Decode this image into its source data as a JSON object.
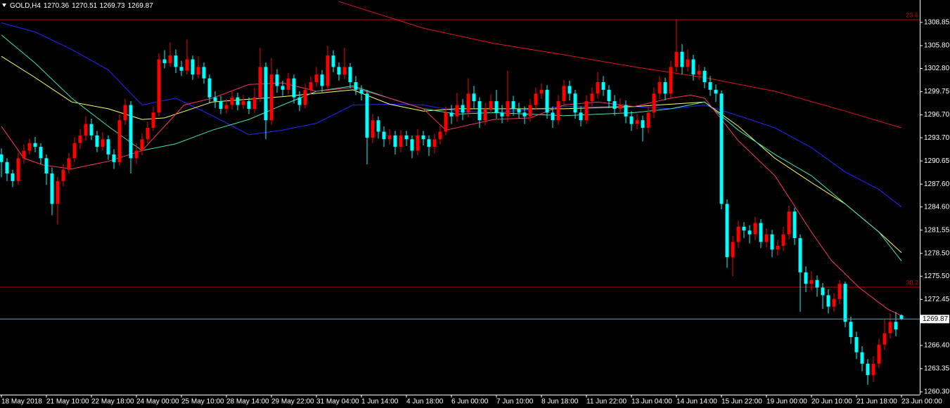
{
  "chart_data": {
    "type": "candlestick",
    "symbol": "GOLD,H4",
    "up_color": "#ff0000",
    "down_color": "#00ffff",
    "open": [
      1291.5,
      1290.5,
      1289,
      1288,
      1291,
      1292,
      1293,
      1292.5,
      1291,
      1289,
      1285,
      1288,
      1289.5,
      1291,
      1293,
      1294,
      1295.5,
      1294,
      1292.5,
      1293.5,
      1291.5,
      1290.5,
      1296,
      1298,
      1291,
      1292,
      1293.5,
      1295,
      1297,
      1304,
      1303.5,
      1304.5,
      1303,
      1302.5,
      1304,
      1302,
      1303,
      1301.5,
      1299,
      1298.5,
      1297.5,
      1298,
      1299,
      1298,
      1298.5,
      1297.5,
      1299,
      1303,
      1296,
      1302,
      1300.5,
      1300,
      1301.5,
      1299,
      1298,
      1300,
      1301,
      1302,
      1300.5,
      1304.5,
      1303,
      1302,
      1303,
      1301,
      1300,
      1299.5,
      1293.7,
      1296,
      1294.5,
      1293.5,
      1294,
      1292.5,
      1294,
      1293.5,
      1292,
      1294,
      1293.5,
      1292.5,
      1293.5,
      1294.5,
      1297,
      1296.5,
      1298,
      1297,
      1299.5,
      1298.5,
      1296,
      1297.5,
      1298.5,
      1297,
      1296.5,
      1298.5,
      1297.5,
      1297,
      1296.5,
      1298,
      1299.5,
      1300,
      1297,
      1296,
      1298.5,
      1300.5,
      1299.5,
      1297,
      1296,
      1298.5,
      1299.5,
      1301,
      1300,
      1298.5,
      1297.5,
      1298,
      1296.5,
      1295.5,
      1296,
      1295,
      1297,
      1299.5,
      1301,
      1299.5,
      1303,
      1305,
      1303,
      1304,
      1302,
      1302.5,
      1301,
      1300,
      1299.5,
      1285,
      1278,
      1280,
      1282,
      1281.5,
      1281,
      1282.5,
      1280,
      1281,
      1279,
      1279.5,
      1281,
      1284,
      1280.5,
      1276,
      1274.5,
      1275,
      1274,
      1273,
      1271.5,
      1272.5,
      1274.5,
      1269.5,
      1267.5,
      1265.5,
      1264,
      1262.5,
      1264,
      1266.5,
      1268,
      1269.5,
      1270.36
    ],
    "high": [
      1292.3,
      1291,
      1289.5,
      1291.8,
      1292.8,
      1293.6,
      1293.8,
      1293,
      1291.5,
      1289.8,
      1288.6,
      1290.2,
      1291.7,
      1293.8,
      1294.8,
      1296.5,
      1296.2,
      1294.6,
      1294.4,
      1294,
      1292.2,
      1296.8,
      1298.8,
      1298.5,
      1293,
      1294.3,
      1295.8,
      1297.8,
      1304.8,
      1305.2,
      1306.2,
      1305.3,
      1303.8,
      1306.6,
      1304.5,
      1304.4,
      1303.6,
      1302,
      1299.8,
      1299.2,
      1298.8,
      1299.8,
      1299.6,
      1299.3,
      1299,
      1300.3,
      1305.5,
      1303.6,
      1304.2,
      1302.7,
      1301.2,
      1302.2,
      1302,
      1299.8,
      1300.8,
      1301.8,
      1303,
      1302.6,
      1305.8,
      1305.2,
      1303.6,
      1305.5,
      1303.5,
      1301.8,
      1300.6,
      1300,
      1296.8,
      1296.5,
      1295.2,
      1294.8,
      1294.6,
      1294.7,
      1294.6,
      1294,
      1294.8,
      1294.6,
      1294,
      1294.2,
      1295.3,
      1297.8,
      1298,
      1299.6,
      1298.8,
      1301.5,
      1300.5,
      1299,
      1298.3,
      1299.4,
      1300,
      1298,
      1302.5,
      1299.2,
      1298.3,
      1297.8,
      1298.8,
      1300.3,
      1300.8,
      1300.6,
      1297.8,
      1299.3,
      1301.3,
      1301.2,
      1300,
      1297.8,
      1299.3,
      1300.3,
      1302.3,
      1301.8,
      1300.6,
      1299.3,
      1298.9,
      1298.6,
      1297.2,
      1296.8,
      1296.6,
      1297.8,
      1300.3,
      1301.8,
      1301.6,
      1303.8,
      1309.3,
      1306,
      1305.3,
      1304.6,
      1303.3,
      1303,
      1301.8,
      1300.7,
      1299.9,
      1285.6,
      1280.8,
      1282.8,
      1282.6,
      1282.2,
      1283.3,
      1283,
      1281.8,
      1281.6,
      1280.3,
      1282,
      1284.8,
      1284.5,
      1281,
      1276.8,
      1276.2,
      1275.6,
      1274.6,
      1273.8,
      1273.3,
      1275,
      1274.8,
      1270.2,
      1268.2,
      1266.3,
      1264.6,
      1265,
      1267.3,
      1269.8,
      1270.6,
      1270.8,
      1270.51
    ],
    "low": [
      1288.5,
      1288,
      1287.2,
      1287.5,
      1290.3,
      1291.5,
      1291.8,
      1290.2,
      1287.5,
      1283.5,
      1282.3,
      1287.3,
      1289,
      1290.5,
      1292.2,
      1293.3,
      1293.4,
      1291.8,
      1292,
      1290.8,
      1289.6,
      1290,
      1295.4,
      1289,
      1290.3,
      1291.4,
      1293,
      1294.6,
      1296.5,
      1302.8,
      1303,
      1302.2,
      1301.8,
      1302,
      1301.3,
      1301.5,
      1300.8,
      1298.3,
      1297.6,
      1296.8,
      1296.9,
      1297.4,
      1297.3,
      1297.5,
      1296.8,
      1297,
      1298.4,
      1293.5,
      1295.4,
      1299.6,
      1299.2,
      1299.4,
      1298.2,
      1297.2,
      1297.5,
      1299.3,
      1300.4,
      1299.7,
      1300,
      1302.3,
      1301.2,
      1301.4,
      1300.2,
      1299.3,
      1298.6,
      1290.2,
      1293,
      1293.6,
      1292.5,
      1292.8,
      1291.5,
      1291.8,
      1292.6,
      1291,
      1291.4,
      1292.7,
      1291.3,
      1291.6,
      1292.8,
      1294,
      1295.5,
      1295.8,
      1296,
      1296.4,
      1297.6,
      1295,
      1295.3,
      1296.8,
      1296.2,
      1295.6,
      1295.8,
      1296.6,
      1296.2,
      1295.5,
      1295.8,
      1297.3,
      1298.8,
      1296.2,
      1295,
      1295.4,
      1297.8,
      1298.6,
      1296.2,
      1295.2,
      1295.5,
      1297.8,
      1298.8,
      1299.2,
      1297.6,
      1296.6,
      1296.8,
      1295.6,
      1294.6,
      1294.8,
      1293.2,
      1294.3,
      1296.3,
      1298.8,
      1298.6,
      1298.8,
      1302.3,
      1302,
      1302.4,
      1301.2,
      1301.3,
      1300.2,
      1299.2,
      1298.4,
      1284.3,
      1276.6,
      1275.5,
      1279.2,
      1280.5,
      1279.8,
      1280.2,
      1279.2,
      1279.3,
      1278,
      1278.2,
      1278.8,
      1280.3,
      1279.6,
      1270.8,
      1273.4,
      1273.6,
      1272.8,
      1271.2,
      1270.6,
      1270.8,
      1271.8,
      1268.8,
      1266.6,
      1264.6,
      1263,
      1261.2,
      1261.6,
      1263.4,
      1265.8,
      1267.3,
      1267.6,
      1269.73
    ],
    "close": [
      1290.5,
      1289,
      1288,
      1291,
      1292,
      1293,
      1292.5,
      1291,
      1289,
      1285,
      1288,
      1289.5,
      1291,
      1293,
      1294,
      1295.5,
      1294,
      1292.5,
      1293.5,
      1291.5,
      1290.5,
      1296,
      1298,
      1291,
      1292,
      1293.5,
      1295,
      1297,
      1304,
      1303.5,
      1304.5,
      1303,
      1302.5,
      1304,
      1302,
      1303,
      1301.5,
      1299,
      1298.5,
      1297.5,
      1298,
      1299,
      1298,
      1298.5,
      1297.5,
      1299,
      1303,
      1296,
      1302,
      1300.5,
      1300,
      1301.5,
      1299,
      1298,
      1300,
      1301,
      1302,
      1300.5,
      1304.5,
      1303,
      1302,
      1303,
      1301,
      1300,
      1299.5,
      1293.7,
      1296,
      1294.5,
      1293.5,
      1294,
      1292.5,
      1294,
      1293.5,
      1292,
      1294,
      1293.5,
      1292.5,
      1293.5,
      1294.5,
      1297,
      1296.5,
      1298,
      1297,
      1299.5,
      1298.5,
      1296,
      1297.5,
      1298.5,
      1297,
      1296.5,
      1298.5,
      1297.5,
      1297,
      1296.5,
      1298,
      1299.5,
      1300,
      1297,
      1296,
      1298.5,
      1300.5,
      1299.5,
      1297,
      1296,
      1298.5,
      1299.5,
      1301,
      1300,
      1298.5,
      1297.5,
      1298,
      1296.5,
      1295.5,
      1296,
      1295,
      1297,
      1299.5,
      1301,
      1299.5,
      1303,
      1305,
      1303,
      1304,
      1302,
      1302.5,
      1301,
      1300,
      1299.5,
      1285,
      1278,
      1280,
      1282,
      1281.5,
      1281,
      1282.5,
      1280,
      1281,
      1279,
      1279.5,
      1281,
      1284,
      1280.5,
      1276,
      1274.5,
      1275,
      1274,
      1273,
      1271.5,
      1272.5,
      1274.5,
      1269.5,
      1267.5,
      1265.5,
      1264,
      1262.5,
      1264,
      1266.5,
      1268,
      1269.5,
      1268.5,
      1269.87
    ],
    "series": [
      {
        "color": "#e31414",
        "x": [
          60,
          75,
          87.5,
          100,
          112.5,
          125,
          137.5,
          150,
          160
        ],
        "values": [
          1311.6,
          1308.1,
          1306.1,
          1304.6,
          1303.0,
          1301.6,
          1299.8,
          1297.2,
          1295.0
        ]
      },
      {
        "color": "#2626ff",
        "x": [
          0,
          6,
          12.5,
          19,
          25,
          31,
          37.5,
          44,
          50,
          56,
          62.5,
          69,
          75,
          81,
          87.5,
          100,
          112.5,
          119,
          125,
          131,
          137.5,
          144,
          150,
          156,
          160
        ],
        "values": [
          1308.8,
          1307.6,
          1305.3,
          1302.6,
          1298.0,
          1298.9,
          1296.6,
          1294.1,
          1294.7,
          1295.6,
          1298.0,
          1298.1,
          1298.0,
          1297.2,
          1297.0,
          1297.8,
          1297.8,
          1297.5,
          1298.0,
          1296.6,
          1295.0,
          1292.4,
          1289.2,
          1286.9,
          1284.6
        ]
      },
      {
        "color": "#ffff66",
        "x": [
          0,
          6,
          12.5,
          19,
          25,
          29,
          37.5,
          50,
          62.5,
          69,
          75,
          81,
          87.5,
          100,
          112.5,
          125,
          131,
          137.5,
          144,
          150,
          156,
          160
        ],
        "values": [
          1304.4,
          1301.6,
          1298.4,
          1297.5,
          1296.1,
          1296.3,
          1298.4,
          1299.1,
          1300.0,
          1298.1,
          1297.2,
          1297.5,
          1297.5,
          1297.5,
          1297.8,
          1298.4,
          1295.2,
          1291.0,
          1287.8,
          1285.0,
          1281.3,
          1278.6
        ]
      },
      {
        "color": "#40e6b0",
        "x": [
          0,
          6,
          12.5,
          19,
          25,
          31,
          37.5,
          44,
          50,
          56,
          62.5,
          69,
          75,
          81,
          87.5,
          100,
          112.5,
          119,
          125,
          131,
          137.5,
          144,
          150,
          156,
          160
        ],
        "values": [
          1307.2,
          1303.5,
          1298.9,
          1295.2,
          1292.0,
          1292.9,
          1294.7,
          1296.1,
          1298.0,
          1299.8,
          1300.5,
          1298.9,
          1297.5,
          1296.8,
          1297.0,
          1296.6,
          1297.0,
          1297.5,
          1298.4,
          1294.7,
          1291.5,
          1288.7,
          1285.0,
          1281.3,
          1277.5
        ]
      },
      {
        "color": "#ff3366",
        "x": [
          0,
          4,
          7.5,
          12.5,
          19,
          25,
          29,
          32.5,
          37.5,
          44,
          50,
          56,
          62.5,
          69,
          75,
          79,
          87.5,
          94,
          100,
          106,
          112.5,
          119,
          122.5,
          125,
          131,
          137.5,
          144,
          147.5,
          152.5,
          157.5,
          160
        ],
        "values": [
          1295.2,
          1291.0,
          1290.1,
          1289.6,
          1290.6,
          1292.0,
          1295.2,
          1298.0,
          1298.9,
          1300.7,
          1300.9,
          1299.8,
          1300.3,
          1298.9,
          1297.5,
          1294.7,
          1296.1,
          1296.3,
          1298.0,
          1298.4,
          1297.8,
          1298.9,
          1299.3,
          1298.9,
          1293.3,
          1288.7,
          1281.3,
          1277.6,
          1274.0,
          1271.2,
          1270.3
        ]
      }
    ],
    "levels": [
      {
        "level": 23.6,
        "price": 1309.22
      },
      {
        "level": 38.2,
        "price": 1274.05
      }
    ],
    "level_color": "#c00000",
    "price_line_color": "#6a9ec0",
    "xlim": [
      -0.25,
      163.25
    ],
    "xticks": [
      {
        "value": 0,
        "label": "18 May 2018"
      },
      {
        "value": 8,
        "label": "21 May 10:00"
      },
      {
        "value": 16,
        "label": "22 May 18:00"
      },
      {
        "value": 24,
        "label": "24 May 00:00"
      },
      {
        "value": 32,
        "label": "25 May 10:00"
      },
      {
        "value": 40,
        "label": "28 May 14:00"
      },
      {
        "value": 48,
        "label": "29 May 22:00"
      },
      {
        "value": 56,
        "label": "31 May 04:00"
      },
      {
        "value": 64,
        "label": "1 Jun 14:00"
      },
      {
        "value": 72,
        "label": "4 Jun 18:00"
      },
      {
        "value": 80,
        "label": "6 Jun 00:00"
      },
      {
        "value": 88,
        "label": "7 Jun 10:00"
      },
      {
        "value": 96,
        "label": "8 Jun 18:00"
      },
      {
        "value": 104,
        "label": "11 Jun 22:00"
      },
      {
        "value": 112,
        "label": "13 Jun 04:00"
      },
      {
        "value": 120,
        "label": "14 Jun 14:00"
      },
      {
        "value": 128,
        "label": "15 Jun 22:00"
      },
      {
        "value": 136,
        "label": "19 Jun 00:00"
      },
      {
        "value": 144,
        "label": "20 Jun 10:00"
      },
      {
        "value": 152,
        "label": "21 Jun 18:00"
      },
      {
        "value": 160,
        "label": "23 Jun 00:00"
      }
    ],
    "ylim": [
      1259.93,
      1311.8
    ],
    "yticks": [
      1308.85,
      {
        "value": 1305.8,
        "label": "1305.80"
      },
      {
        "value": 1302.8,
        "label": "1302.80"
      },
      1299.75,
      {
        "value": 1296.7,
        "label": "1296.70"
      },
      {
        "value": 1293.7,
        "label": "1293.70"
      },
      1290.65,
      {
        "value": 1287.6,
        "label": "1287.60"
      },
      {
        "value": 1284.6,
        "label": "1284.60"
      },
      1281.55,
      {
        "value": 1278.5,
        "label": "1278.50"
      },
      {
        "value": 1275.5,
        "label": "1275.50"
      },
      1272.45,
      {
        "value": 1266.4,
        "label": "1266.40"
      },
      1263.35,
      {
        "value": 1260.3,
        "label": "1260.30"
      }
    ]
  }
}
